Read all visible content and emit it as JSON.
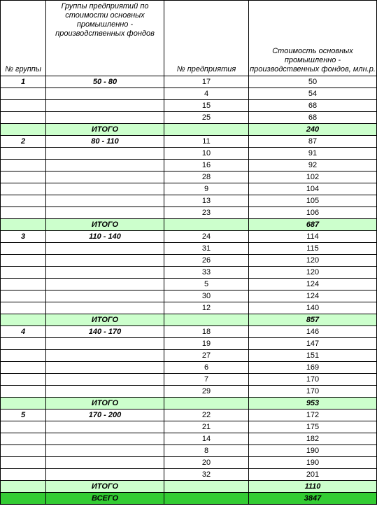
{
  "header": {
    "group_no": "№ группы",
    "group_range": "Группы предприятий по стоимости основных промышленно - производственных фондов",
    "enterprise_no": "№ предприятия",
    "value": "Стоимость основных промышленно - производственных фондов, млн.р."
  },
  "total_label": "ИТОГО",
  "grand_label": "ВСЕГО",
  "grand_value": "3847",
  "groups": [
    {
      "no": "1",
      "range": "50 - 80",
      "total": "240",
      "rows": [
        [
          "17",
          "50"
        ],
        [
          "4",
          "54"
        ],
        [
          "15",
          "68"
        ],
        [
          "25",
          "68"
        ]
      ]
    },
    {
      "no": "2",
      "range": "80 - 110",
      "total": "687",
      "rows": [
        [
          "11",
          "87"
        ],
        [
          "10",
          "91"
        ],
        [
          "16",
          "92"
        ],
        [
          "28",
          "102"
        ],
        [
          "9",
          "104"
        ],
        [
          "13",
          "105"
        ],
        [
          "23",
          "106"
        ]
      ]
    },
    {
      "no": "3",
      "range": "110 - 140",
      "total": "857",
      "rows": [
        [
          "24",
          "114"
        ],
        [
          "31",
          "115"
        ],
        [
          "26",
          "120"
        ],
        [
          "33",
          "120"
        ],
        [
          "5",
          "124"
        ],
        [
          "30",
          "124"
        ],
        [
          "12",
          "140"
        ]
      ]
    },
    {
      "no": "4",
      "range": "140 - 170",
      "total": "953",
      "rows": [
        [
          "18",
          "146"
        ],
        [
          "19",
          "147"
        ],
        [
          "27",
          "151"
        ],
        [
          "6",
          "169"
        ],
        [
          "7",
          "170"
        ],
        [
          "29",
          "170"
        ]
      ]
    },
    {
      "no": "5",
      "range": "170 - 200",
      "total": "1110",
      "rows": [
        [
          "22",
          "172"
        ],
        [
          "21",
          "175"
        ],
        [
          "14",
          "182"
        ],
        [
          "8",
          "190"
        ],
        [
          "20",
          "190"
        ],
        [
          "32",
          "201"
        ]
      ]
    }
  ]
}
